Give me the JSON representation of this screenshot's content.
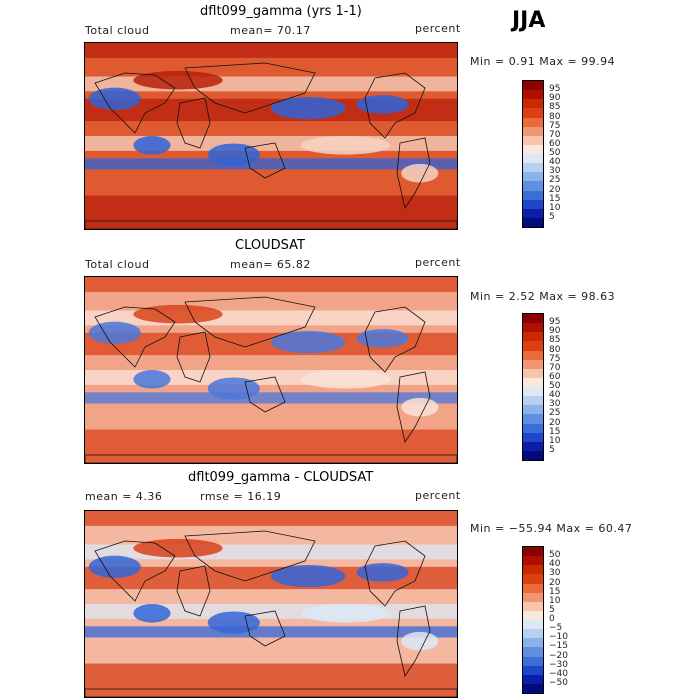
{
  "season": "JJA",
  "panels": [
    {
      "title": "dflt099_gamma (yrs 1-1)",
      "left_label": "Total cloud",
      "center_label": "mean=  70.17",
      "right_label": "percent",
      "minmax": "Min =    0.91 Max =  99.94",
      "colorbar": {
        "labels": [
          "95",
          "90",
          "85",
          "80",
          "75",
          "70",
          "60",
          "50",
          "40",
          "30",
          "25",
          "20",
          "15",
          "10",
          "5"
        ],
        "colors": [
          "#8b0000",
          "#b00f00",
          "#cc2800",
          "#dd4010",
          "#ea6a3a",
          "#f29575",
          "#f8c4aa",
          "#fbe8dc",
          "#dce8f6",
          "#b9cff0",
          "#8cb2ea",
          "#5f8fe0",
          "#3a6fd8",
          "#1e46c8",
          "#0c1ea8",
          "#020a7c"
        ]
      },
      "fields": {
        "base": "#df5a30",
        "warm": "#b8200c",
        "cool": "#2f63d8",
        "pale": "#f6d3c2"
      }
    },
    {
      "title": "CLOUDSAT",
      "left_label": "Total cloud",
      "center_label": "mean=  65.82",
      "right_label": "percent",
      "minmax": "Min =    2.52 Max =  98.63",
      "colorbar": {
        "labels": [
          "95",
          "90",
          "85",
          "80",
          "75",
          "70",
          "60",
          "50",
          "40",
          "30",
          "25",
          "20",
          "15",
          "10",
          "5"
        ],
        "colors": [
          "#8b0000",
          "#b00f00",
          "#cc2800",
          "#dd4010",
          "#ea6a3a",
          "#f29575",
          "#f8c4aa",
          "#fbe8dc",
          "#dce8f6",
          "#b9cff0",
          "#8cb2ea",
          "#5f8fe0",
          "#3a6fd8",
          "#1e46c8",
          "#0c1ea8",
          "#020a7c"
        ]
      },
      "fields": {
        "base": "#f1a488",
        "warm": "#d8441c",
        "cool": "#4a78dc",
        "pale": "#fbe3d8"
      }
    },
    {
      "title": "dflt099_gamma - CLOUDSAT",
      "left_label": "mean =    4.36",
      "center_label": "rmse =   16.19",
      "right_label": "percent",
      "minmax": "Min = −55.94 Max =  60.47",
      "colorbar": {
        "labels": [
          "50",
          "40",
          "30",
          "20",
          "15",
          "10",
          "5",
          "0",
          "−5",
          "−10",
          "−15",
          "−20",
          "−30",
          "−40",
          "−50"
        ],
        "colors": [
          "#8b0000",
          "#b00f00",
          "#cc2800",
          "#dd4010",
          "#ea6a3a",
          "#f29575",
          "#f8c4aa",
          "#fbe8dc",
          "#dce8f6",
          "#b9cff0",
          "#8cb2ea",
          "#5f8fe0",
          "#3a6fd8",
          "#1e46c8",
          "#0c1ea8",
          "#020a7c"
        ]
      },
      "fields": {
        "base": "#f4b8a0",
        "warm": "#d8401a",
        "cool": "#3466d8",
        "pale": "#dce8f6"
      }
    }
  ]
}
